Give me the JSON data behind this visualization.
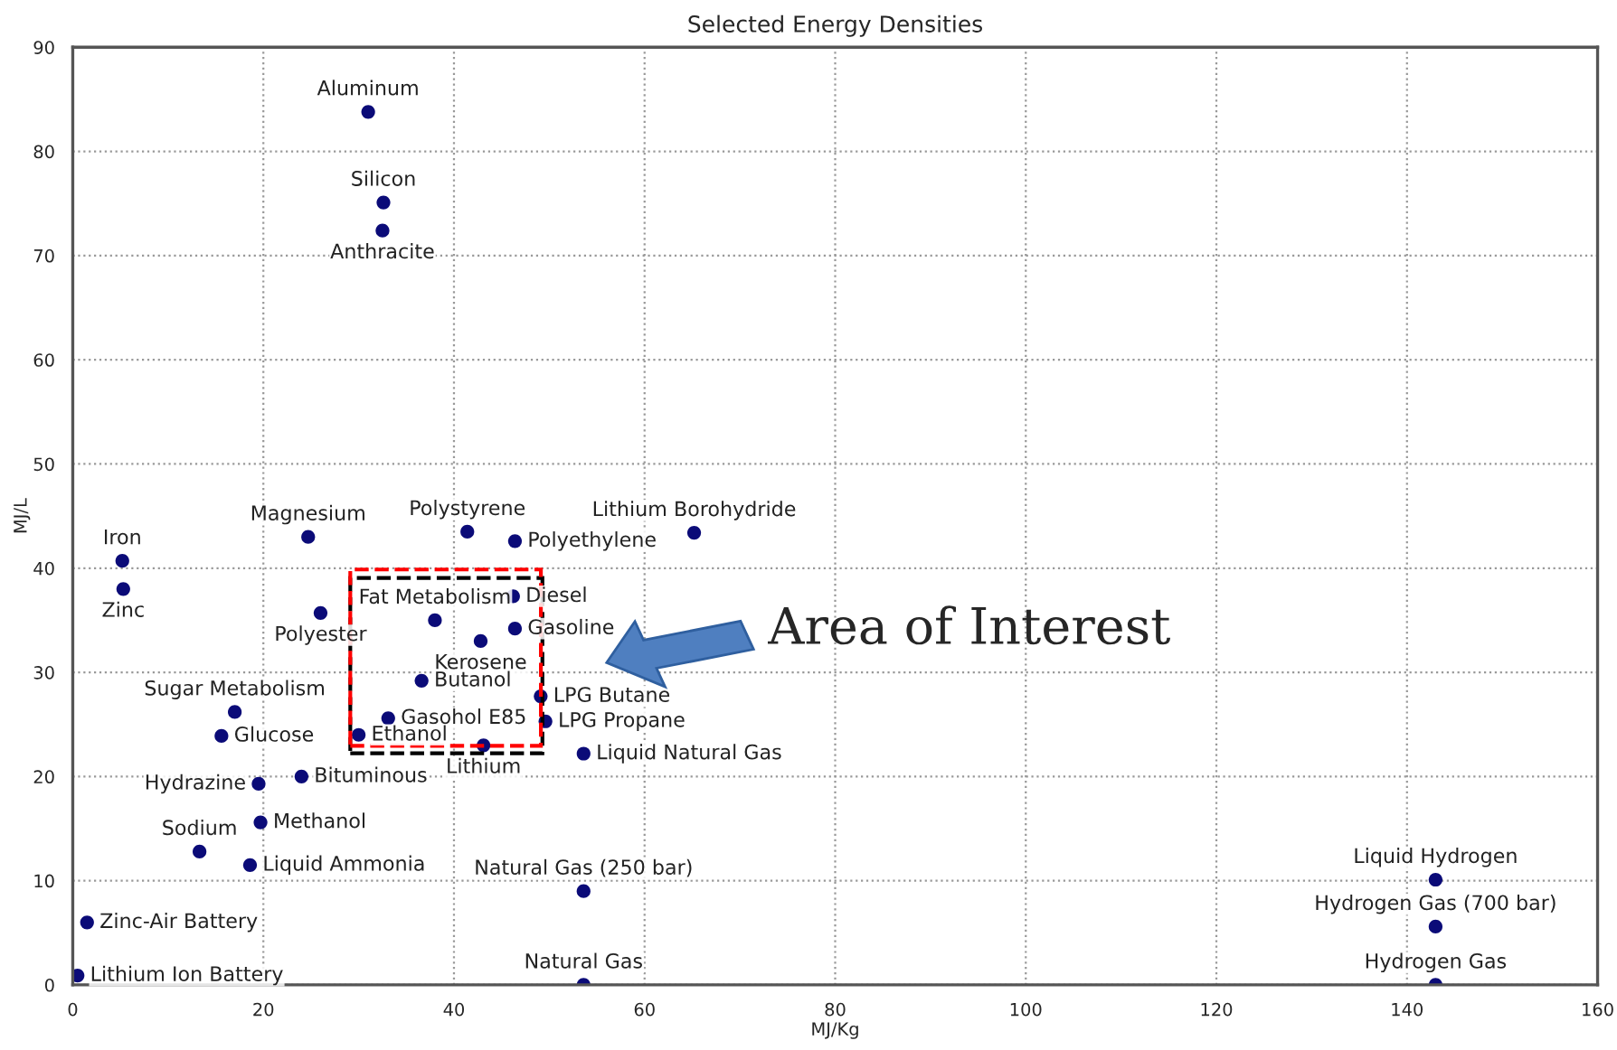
{
  "chart_data": {
    "type": "scatter",
    "title": "Selected Energy Densities",
    "xlabel": "MJ/Kg",
    "ylabel": "MJ/L",
    "series": [
      {
        "color": "#0b0b78",
        "x": [
          31,
          32.6,
          32.5,
          24.7,
          41.4,
          46.4,
          65.2,
          5.2,
          5.3,
          26,
          38,
          46.2,
          46.4,
          42.8,
          36.6,
          49.1,
          49.6,
          33.1,
          30,
          43.1,
          53.6,
          17,
          15.6,
          19.5,
          24,
          19.7,
          13.3,
          18.6,
          53.6,
          1.5,
          0.5,
          53.6,
          143,
          143,
          143
        ],
        "values": [
          83.8,
          75.1,
          72.4,
          43,
          43.5,
          42.6,
          43.4,
          40.7,
          38,
          35.7,
          35,
          37.3,
          34.2,
          33,
          29.2,
          27.7,
          25.3,
          25.6,
          24,
          23,
          22.2,
          26.2,
          23.9,
          19.3,
          20,
          15.6,
          12.8,
          11.5,
          9,
          6,
          0.9,
          0,
          10.1,
          5.6,
          0
        ]
      }
    ],
    "marker": "circle",
    "grid": true,
    "xlim": [
      0,
      160
    ],
    "ylim": [
      0,
      90
    ],
    "xticks": [
      0,
      20,
      40,
      60,
      80,
      100,
      120,
      140,
      160
    ],
    "yticks": [
      0,
      10,
      20,
      30,
      40,
      50,
      60,
      70,
      80,
      90
    ],
    "annotations": [
      {
        "text": "Aluminum",
        "x": 31,
        "y": 83.8
      },
      {
        "text": "Silicon",
        "x": 32.6,
        "y": 75.1
      },
      {
        "text": "Anthracite",
        "x": 32.5,
        "y": 72.4
      },
      {
        "text": "Magnesium",
        "x": 24.7,
        "y": 43
      },
      {
        "text": "Polystyrene",
        "x": 41.4,
        "y": 43.5
      },
      {
        "text": "Polyethylene",
        "x": 46.4,
        "y": 42.6
      },
      {
        "text": "Lithium Borohydride",
        "x": 65.2,
        "y": 43.4
      },
      {
        "text": "Iron",
        "x": 5.2,
        "y": 40.7
      },
      {
        "text": "Zinc",
        "x": 5.3,
        "y": 38
      },
      {
        "text": "Polyester",
        "x": 26,
        "y": 35.7
      },
      {
        "text": "Fat Metabolism",
        "x": 38,
        "y": 35
      },
      {
        "text": "Diesel",
        "x": 46.2,
        "y": 37.3
      },
      {
        "text": "Gasoline",
        "x": 46.4,
        "y": 34.2
      },
      {
        "text": "Kerosene",
        "x": 42.8,
        "y": 33
      },
      {
        "text": "Butanol",
        "x": 36.6,
        "y": 29.2
      },
      {
        "text": "LPG Butane",
        "x": 49.1,
        "y": 27.7
      },
      {
        "text": "LPG Propane",
        "x": 49.6,
        "y": 25.3
      },
      {
        "text": "Gasohol E85",
        "x": 33.1,
        "y": 25.6
      },
      {
        "text": "Ethanol",
        "x": 30,
        "y": 24
      },
      {
        "text": "Lithium",
        "x": 43.1,
        "y": 23
      },
      {
        "text": "Liquid Natural Gas",
        "x": 53.6,
        "y": 22.2
      },
      {
        "text": "Sugar Metabolism",
        "x": 17,
        "y": 26.2
      },
      {
        "text": "Glucose",
        "x": 15.6,
        "y": 23.9
      },
      {
        "text": "Hydrazine",
        "x": 19.5,
        "y": 19.3
      },
      {
        "text": "Bituminous",
        "x": 24,
        "y": 20
      },
      {
        "text": "Methanol",
        "x": 19.7,
        "y": 15.6
      },
      {
        "text": "Sodium",
        "x": 13.3,
        "y": 12.8
      },
      {
        "text": "Liquid Ammonia",
        "x": 18.6,
        "y": 11.5
      },
      {
        "text": "Natural Gas (250 bar)",
        "x": 53.6,
        "y": 9
      },
      {
        "text": "Zinc-Air Battery",
        "x": 1.5,
        "y": 6
      },
      {
        "text": "Lithium Ion Battery",
        "x": 0.5,
        "y": 0.9
      },
      {
        "text": "Natural Gas",
        "x": 53.6,
        "y": 0
      },
      {
        "text": "Liquid Hydrogen",
        "x": 143,
        "y": 10.1
      },
      {
        "text": "Hydrogen Gas (700 bar)",
        "x": 143,
        "y": 5.6
      },
      {
        "text": "Hydrogen Gas",
        "x": 143,
        "y": 0
      },
      "Area of Interest"
    ]
  }
}
